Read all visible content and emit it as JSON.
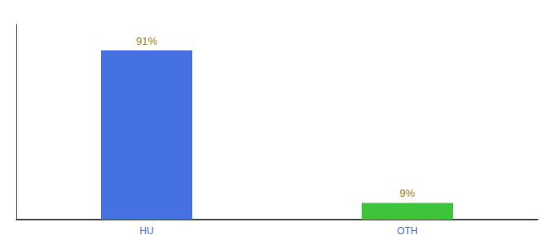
{
  "chart_data": {
    "type": "bar",
    "categories": [
      "HU",
      "OTH"
    ],
    "values": [
      91,
      9
    ],
    "value_labels": [
      "91%",
      "9%"
    ],
    "colors": [
      "#4472e0",
      "#3dc43d"
    ],
    "ylim": [
      0,
      105
    ],
    "grid": false,
    "data_labels": true,
    "tick_labels": "x"
  }
}
